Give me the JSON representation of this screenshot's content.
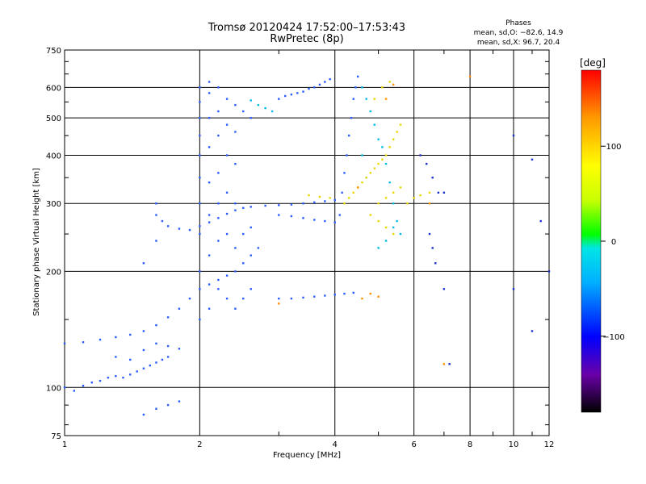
{
  "header": {
    "title": "Tromsø 20120424 17:52:00–17:53:43",
    "subtitle": "RwPretec (8p)",
    "phases_title": "Phases",
    "phases_o": "mean, sd,O: −82.6, 14.9",
    "phases_x": "mean, sd,X:  96.7, 20.4"
  },
  "colorbar": {
    "unit_label": "[deg]",
    "ticks": [
      "100",
      "0",
      "−100"
    ],
    "tick_values": [
      100,
      0,
      -100
    ],
    "range": [
      -180,
      180
    ],
    "colors": [
      "#000000",
      "#6a00a8",
      "#0000ff",
      "#00b0ff",
      "#00e5e5",
      "#00ff00",
      "#c8ff00",
      "#ffff00",
      "#ff9a00",
      "#ff0000"
    ]
  },
  "chart_data": {
    "type": "scatter",
    "title": "Tromsø 20120424 17:52:00–17:53:43",
    "subtitle": "RwPretec (8p)",
    "xlabel": "Frequency [MHz]",
    "ylabel": "Stationary phase Virtual Height [km]",
    "x_scale": "log",
    "y_scale": "log",
    "xlim": [
      1,
      12
    ],
    "ylim": [
      75,
      750
    ],
    "x_ticks": [
      1,
      2,
      4,
      6,
      8,
      10,
      12
    ],
    "x_tick_labels": [
      "1",
      "2",
      "4",
      "6",
      "8",
      "10",
      "12"
    ],
    "y_ticks": [
      75,
      100,
      200,
      300,
      400,
      500,
      600,
      750
    ],
    "y_tick_labels": [
      "75",
      "100",
      "200",
      "300",
      "400",
      "500",
      "600",
      "750"
    ],
    "grid": true,
    "series": [
      {
        "color": "#2a5cff",
        "points": [
          [
            1.0,
            100
          ],
          [
            1.05,
            98
          ],
          [
            1.1,
            101
          ],
          [
            1.15,
            103
          ],
          [
            1.2,
            104
          ],
          [
            1.25,
            106
          ],
          [
            1.3,
            107
          ],
          [
            1.35,
            106
          ],
          [
            1.4,
            108
          ],
          [
            1.45,
            110
          ],
          [
            1.5,
            112
          ],
          [
            1.55,
            114
          ],
          [
            1.6,
            116
          ],
          [
            1.65,
            118
          ],
          [
            1.7,
            120
          ],
          [
            1.0,
            130
          ],
          [
            1.1,
            131
          ],
          [
            1.2,
            133
          ],
          [
            1.3,
            135
          ],
          [
            1.4,
            137
          ],
          [
            1.5,
            140
          ],
          [
            1.6,
            145
          ],
          [
            1.7,
            152
          ],
          [
            1.8,
            160
          ],
          [
            1.9,
            170
          ],
          [
            2.0,
            180
          ],
          [
            2.1,
            185
          ],
          [
            2.2,
            190
          ],
          [
            2.3,
            195
          ],
          [
            2.4,
            200
          ],
          [
            2.5,
            210
          ],
          [
            2.6,
            220
          ],
          [
            2.7,
            230
          ],
          [
            1.6,
            280
          ],
          [
            1.65,
            270
          ],
          [
            1.7,
            262
          ],
          [
            1.8,
            258
          ],
          [
            1.9,
            256
          ],
          [
            2.0,
            262
          ],
          [
            2.1,
            268
          ],
          [
            2.2,
            275
          ],
          [
            2.3,
            282
          ],
          [
            2.4,
            288
          ],
          [
            2.5,
            292
          ],
          [
            2.6,
            294
          ],
          [
            2.8,
            296
          ],
          [
            3.0,
            297
          ],
          [
            3.2,
            298
          ],
          [
            3.4,
            300
          ],
          [
            3.6,
            302
          ],
          [
            3.8,
            304
          ],
          [
            4.0,
            306
          ],
          [
            2.0,
            150
          ],
          [
            2.0,
            200
          ],
          [
            2.0,
            250
          ],
          [
            2.0,
            300
          ],
          [
            2.0,
            350
          ],
          [
            2.0,
            400
          ],
          [
            2.0,
            450
          ],
          [
            2.0,
            500
          ],
          [
            2.0,
            550
          ],
          [
            2.0,
            600
          ],
          [
            2.1,
            160
          ],
          [
            2.1,
            220
          ],
          [
            2.1,
            280
          ],
          [
            2.1,
            340
          ],
          [
            2.1,
            420
          ],
          [
            2.1,
            500
          ],
          [
            2.1,
            580
          ],
          [
            2.1,
            620
          ],
          [
            2.2,
            180
          ],
          [
            2.2,
            240
          ],
          [
            2.2,
            300
          ],
          [
            2.2,
            360
          ],
          [
            2.2,
            450
          ],
          [
            2.2,
            520
          ],
          [
            2.2,
            600
          ],
          [
            2.3,
            170
          ],
          [
            2.3,
            250
          ],
          [
            2.3,
            320
          ],
          [
            2.3,
            400
          ],
          [
            2.3,
            480
          ],
          [
            2.3,
            560
          ],
          [
            2.4,
            160
          ],
          [
            2.4,
            230
          ],
          [
            2.4,
            300
          ],
          [
            2.4,
            380
          ],
          [
            2.4,
            460
          ],
          [
            2.4,
            540
          ],
          [
            2.5,
            170
          ],
          [
            2.5,
            250
          ],
          [
            2.5,
            520
          ],
          [
            2.6,
            180
          ],
          [
            2.6,
            260
          ],
          [
            2.6,
            500
          ],
          [
            3.0,
            560
          ],
          [
            3.1,
            570
          ],
          [
            3.2,
            575
          ],
          [
            3.3,
            580
          ],
          [
            3.4,
            585
          ],
          [
            3.5,
            595
          ],
          [
            3.6,
            600
          ],
          [
            3.7,
            610
          ],
          [
            3.8,
            620
          ],
          [
            3.9,
            630
          ],
          [
            3.0,
            280
          ],
          [
            3.2,
            278
          ],
          [
            3.4,
            275
          ],
          [
            3.6,
            272
          ],
          [
            3.8,
            270
          ],
          [
            4.0,
            268
          ],
          [
            4.1,
            280
          ],
          [
            4.15,
            320
          ],
          [
            4.2,
            360
          ],
          [
            4.25,
            400
          ],
          [
            4.3,
            450
          ],
          [
            4.35,
            500
          ],
          [
            4.4,
            560
          ],
          [
            4.45,
            600
          ],
          [
            4.5,
            640
          ],
          [
            3.0,
            170
          ],
          [
            3.2,
            170
          ],
          [
            3.4,
            171
          ],
          [
            3.6,
            172
          ],
          [
            3.8,
            173
          ],
          [
            4.0,
            174
          ],
          [
            4.2,
            175
          ],
          [
            4.4,
            176
          ],
          [
            1.6,
            240
          ],
          [
            1.6,
            300
          ],
          [
            1.5,
            210
          ],
          [
            1.3,
            120
          ],
          [
            1.4,
            118
          ],
          [
            1.5,
            125
          ],
          [
            1.6,
            130
          ],
          [
            1.7,
            128
          ],
          [
            1.8,
            126
          ],
          [
            1.5,
            85
          ],
          [
            1.6,
            88
          ],
          [
            1.7,
            90
          ],
          [
            1.8,
            92
          ]
        ]
      },
      {
        "color": "#00bbe8",
        "points": [
          [
            2.6,
            555
          ],
          [
            2.7,
            540
          ],
          [
            2.8,
            530
          ],
          [
            2.9,
            520
          ],
          [
            4.6,
            600
          ],
          [
            4.7,
            560
          ],
          [
            4.8,
            520
          ],
          [
            4.9,
            480
          ],
          [
            5.0,
            440
          ],
          [
            5.1,
            420
          ],
          [
            5.2,
            380
          ],
          [
            5.3,
            340
          ],
          [
            5.4,
            300
          ],
          [
            5.5,
            270
          ],
          [
            5.6,
            250
          ],
          [
            5.0,
            230
          ],
          [
            5.2,
            240
          ],
          [
            5.4,
            260
          ],
          [
            4.6,
            400
          ],
          [
            4.7,
            350
          ]
        ]
      },
      {
        "color": "#e8d800",
        "points": [
          [
            4.2,
            300
          ],
          [
            4.3,
            310
          ],
          [
            4.4,
            320
          ],
          [
            4.5,
            330
          ],
          [
            4.6,
            340
          ],
          [
            4.7,
            350
          ],
          [
            4.8,
            360
          ],
          [
            4.9,
            370
          ],
          [
            5.0,
            380
          ],
          [
            5.1,
            390
          ],
          [
            5.2,
            400
          ],
          [
            5.3,
            420
          ],
          [
            5.4,
            440
          ],
          [
            5.5,
            460
          ],
          [
            5.6,
            480
          ],
          [
            5.0,
            300
          ],
          [
            5.2,
            310
          ],
          [
            5.4,
            320
          ],
          [
            5.6,
            330
          ],
          [
            5.8,
            300
          ],
          [
            6.0,
            310
          ],
          [
            6.2,
            315
          ],
          [
            6.5,
            320
          ],
          [
            4.8,
            280
          ],
          [
            5.0,
            270
          ],
          [
            5.2,
            260
          ],
          [
            5.4,
            250
          ],
          [
            4.9,
            560
          ],
          [
            5.1,
            600
          ],
          [
            5.3,
            620
          ],
          [
            3.5,
            315
          ],
          [
            3.7,
            312
          ],
          [
            3.9,
            310
          ]
        ]
      },
      {
        "color": "#ff9000",
        "points": [
          [
            4.6,
            170
          ],
          [
            4.8,
            175
          ],
          [
            5.0,
            172
          ],
          [
            3.0,
            165
          ],
          [
            5.2,
            560
          ],
          [
            5.4,
            610
          ],
          [
            4.5,
            330
          ],
          [
            6.5,
            300
          ],
          [
            7.0,
            115
          ],
          [
            8.0,
            640
          ]
        ]
      },
      {
        "color": "#1a30d0",
        "points": [
          [
            6.2,
            400
          ],
          [
            6.4,
            380
          ],
          [
            6.6,
            350
          ],
          [
            6.8,
            320
          ],
          [
            7.0,
            320
          ],
          [
            6.5,
            250
          ],
          [
            6.6,
            230
          ],
          [
            6.7,
            210
          ],
          [
            7.0,
            180
          ],
          [
            7.2,
            115
          ],
          [
            10.0,
            450
          ],
          [
            11.0,
            390
          ],
          [
            11.5,
            270
          ],
          [
            12.0,
            200
          ],
          [
            11.0,
            140
          ],
          [
            10.0,
            180
          ]
        ]
      }
    ]
  }
}
